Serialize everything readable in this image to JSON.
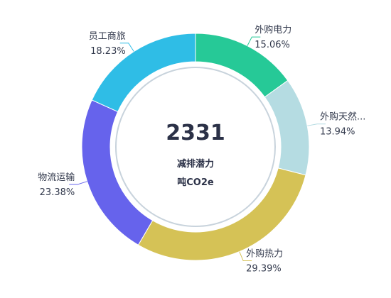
{
  "chart_data": {
    "type": "pie",
    "donut": true,
    "center": {
      "value": "2331",
      "label": "减排潜力",
      "unit": "吨CO2e"
    },
    "slices": [
      {
        "name": "外购电力",
        "display_name": "外购电力",
        "percent": 15.06,
        "percent_label": "15.06%",
        "color": "#26c997"
      },
      {
        "name": "外购天然气",
        "display_name": "外购天然...",
        "percent": 13.94,
        "percent_label": "13.94%",
        "color": "#b5dce2"
      },
      {
        "name": "外购热力",
        "display_name": "外购热力",
        "percent": 29.39,
        "percent_label": "29.39%",
        "color": "#d5c256"
      },
      {
        "name": "物流运输",
        "display_name": "物流运输",
        "percent": 23.38,
        "percent_label": "23.38%",
        "color": "#6663ec"
      },
      {
        "name": "员工商旅",
        "display_name": "员工商旅",
        "percent": 18.23,
        "percent_label": "18.23%",
        "color": "#2fbde6"
      }
    ],
    "legend": "none",
    "label_placement": "outside-with-leader-lines"
  }
}
